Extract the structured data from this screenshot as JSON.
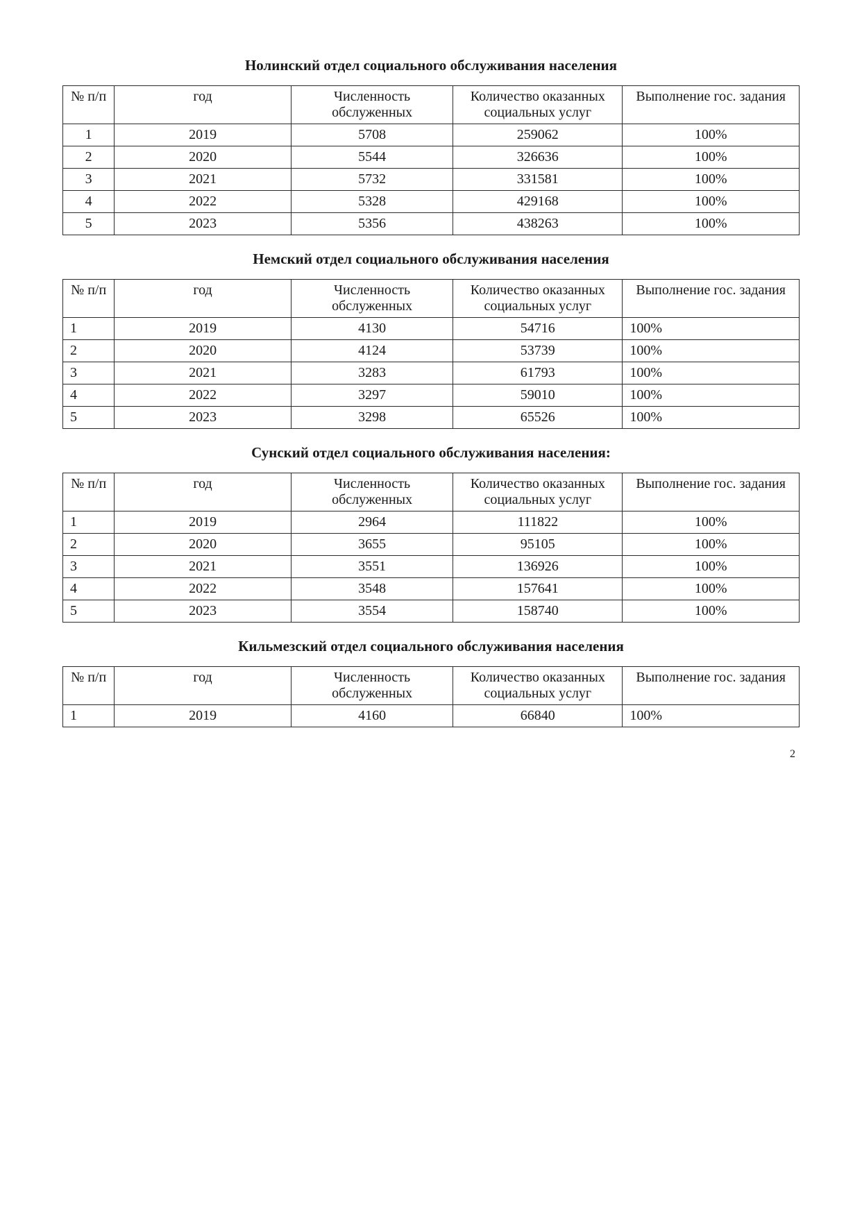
{
  "page_number": "2",
  "columns": {
    "num": "№ п/п",
    "year": "год",
    "served": "Численность обслуженных",
    "services": "Количество оказанных социальных услуг",
    "exec": "Выполнение гос. задания"
  },
  "sections": [
    {
      "title": "Нолинский отдел социального обслуживания населения",
      "num_align": "center",
      "exec_align": "center",
      "rows": [
        {
          "num": "1",
          "year": "2019",
          "served": "5708",
          "services": "259062",
          "exec": "100%"
        },
        {
          "num": "2",
          "year": "2020",
          "served": "5544",
          "services": "326636",
          "exec": "100%"
        },
        {
          "num": "3",
          "year": "2021",
          "served": "5732",
          "services": "331581",
          "exec": "100%"
        },
        {
          "num": "4",
          "year": "2022",
          "served": "5328",
          "services": "429168",
          "exec": "100%"
        },
        {
          "num": "5",
          "year": "2023",
          "served": "5356",
          "services": "438263",
          "exec": "100%"
        }
      ]
    },
    {
      "title": "Немский отдел социального обслуживания населения",
      "num_align": "left",
      "exec_align": "left",
      "rows": [
        {
          "num": "1",
          "year": "2019",
          "served": "4130",
          "services": "54716",
          "exec": "100%"
        },
        {
          "num": "2",
          "year": "2020",
          "served": "4124",
          "services": "53739",
          "exec": "100%"
        },
        {
          "num": "3",
          "year": "2021",
          "served": "3283",
          "services": "61793",
          "exec": "100%"
        },
        {
          "num": "4",
          "year": "2022",
          "served": "3297",
          "services": "59010",
          "exec": "100%"
        },
        {
          "num": "5",
          "year": "2023",
          "served": "3298",
          "services": "65526",
          "exec": "100%"
        }
      ]
    },
    {
      "title": "Сунский отдел социального обслуживания населения:",
      "num_align": "left",
      "exec_align": "center",
      "rows": [
        {
          "num": "1",
          "year": "2019",
          "served": "2964",
          "services": "111822",
          "exec": "100%"
        },
        {
          "num": "2",
          "year": "2020",
          "served": "3655",
          "services": "95105",
          "exec": "100%"
        },
        {
          "num": "3",
          "year": "2021",
          "served": "3551",
          "services": "136926",
          "exec": "100%"
        },
        {
          "num": "4",
          "year": "2022",
          "served": "3548",
          "services": "157641",
          "exec": "100%"
        },
        {
          "num": "5",
          "year": "2023",
          "served": "3554",
          "services": "158740",
          "exec": "100%"
        }
      ]
    },
    {
      "title": "Кильмезский  отдел социального обслуживания населения",
      "num_align": "left",
      "exec_align": "left",
      "rows": [
        {
          "num": "1",
          "year": "2019",
          "served": "4160",
          "services": "66840",
          "exec": "100%"
        }
      ]
    }
  ]
}
